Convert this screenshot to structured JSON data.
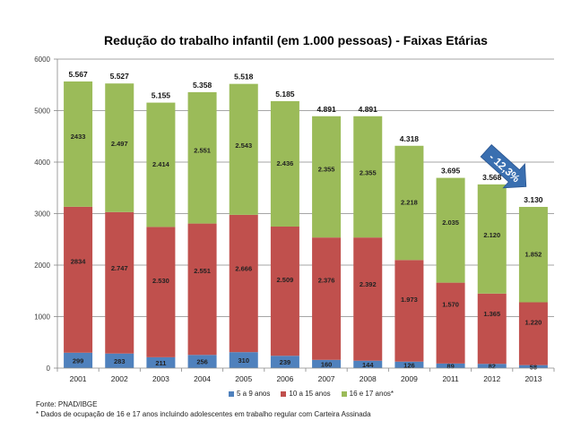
{
  "chart_data": {
    "type": "bar",
    "stacked": true,
    "title": "Redução do trabalho infantil (em 1.000 pessoas) - Faixas Etárias",
    "xlabel": "",
    "ylabel": "",
    "ylim": [
      0,
      6000
    ],
    "yticks": [
      "0",
      "1000",
      "2000",
      "3000",
      "4000",
      "5000",
      "6000"
    ],
    "grid": true,
    "legend_position": "bottom",
    "categories": [
      "2001",
      "2002",
      "2003",
      "2004",
      "2005",
      "2006",
      "2007",
      "2008",
      "2009",
      "2011",
      "2012",
      "2013"
    ],
    "series": [
      {
        "name": "5 a 9 anos",
        "color": "#4f81bd",
        "values": [
          299,
          283,
          211,
          256,
          310,
          239,
          160,
          144,
          126,
          89,
          82,
          58
        ],
        "labels": [
          "299",
          "283",
          "211",
          "256",
          "310",
          "239",
          "160",
          "144",
          "126",
          "89",
          "82",
          "58"
        ]
      },
      {
        "name": "10 a 15 anos",
        "color": "#c0504d",
        "values": [
          2834,
          2747,
          2530,
          2551,
          2666,
          2509,
          2376,
          2392,
          1973,
          1570,
          1365,
          1220
        ],
        "labels": [
          "2834",
          "2.747",
          "2.530",
          "2.551",
          "2.666",
          "2.509",
          "2.376",
          "2.392",
          "1.973",
          "1.570",
          "1.365",
          "1.220"
        ]
      },
      {
        "name": "16 e 17 anos*",
        "color": "#9bbb59",
        "values": [
          2433,
          2497,
          2414,
          2551,
          2543,
          2436,
          2355,
          2355,
          2218,
          2035,
          2120,
          1852
        ],
        "labels": [
          "2433",
          "2.497",
          "2.414",
          "2.551",
          "2.543",
          "2.436",
          "2.355",
          "2.355",
          "2.218",
          "2.035",
          "2.120",
          "1.852"
        ]
      }
    ],
    "totals": [
      5567,
      5527,
      5155,
      5358,
      5518,
      5185,
      4891,
      4891,
      4318,
      3695,
      3568,
      3130
    ],
    "total_labels": [
      "5.567",
      "5.527",
      "5.155",
      "5.358",
      "5.518",
      "5.185",
      "4.891",
      "4.891",
      "4.318",
      "3.695",
      "3.568",
      "3.130"
    ],
    "annotation": {
      "text": "- 12,3%",
      "color": "#3a6fb0"
    }
  },
  "footer": {
    "source": "Fonte: PNAD/IBGE",
    "note": "* Dados de ocupação de 16 e 17 anos incluindo adolescentes em trabalho regular com Carteira Assinada"
  }
}
